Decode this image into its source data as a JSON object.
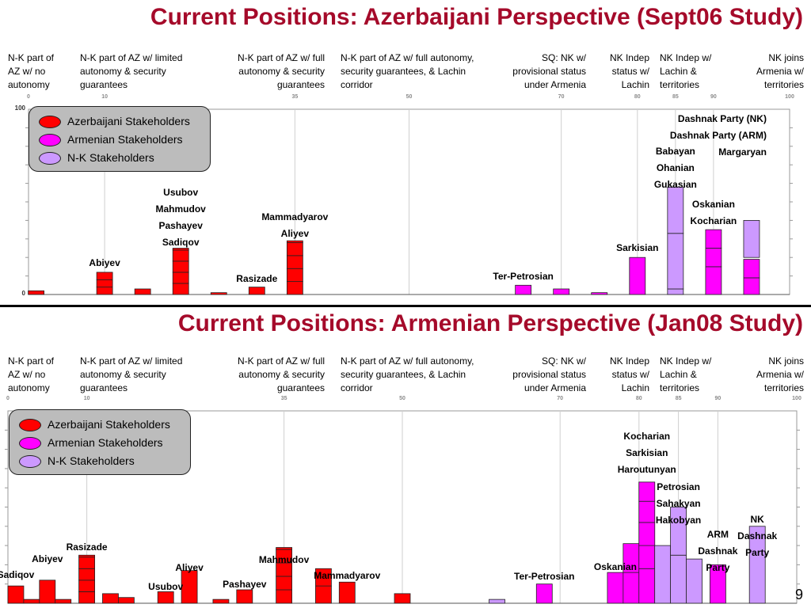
{
  "page_number": "9",
  "colors": {
    "title": "#a50a2a",
    "azerbaijani": "#ff0000",
    "armenian": "#ff00ff",
    "nk": "#cc99ff"
  },
  "position_headers": [
    "N-K part of AZ w/ no autonomy",
    "N-K part of AZ w/ limited autonomy & security guarantees",
    "N-K part of AZ w/ full autonomy & security guarantees",
    "N-K part of AZ w/ full autonomy, security guarantees, & Lachin corridor",
    "SQ: NK w/ provisional status under Armenia",
    "NK Indep status w/ Lachin",
    "NK Indep w/ Lachin & territories",
    "NK joins Armenia w/ territories"
  ],
  "legend": [
    "Azerbaijani Stakeholders",
    "Armenian Stakeholders",
    "N-K Stakeholders"
  ],
  "chart_data": [
    {
      "type": "bar",
      "title": "Current Positions: Azerbaijani Perspective (Sept06 Study)",
      "xlim": [
        0,
        100
      ],
      "ylim": [
        0,
        100
      ],
      "x_ticks": [
        "0",
        "10",
        "35",
        "50",
        "70",
        "80",
        "85",
        "90",
        "100"
      ],
      "x_tick_values": [
        0,
        10,
        35,
        50,
        70,
        80,
        85,
        90,
        100
      ],
      "y_ticks": [
        "100",
        "0"
      ],
      "y_tick_values": [
        100,
        0
      ],
      "bars": [
        {
          "x": 1,
          "group": "azerbaijani",
          "segments": [
            2
          ]
        },
        {
          "x": 10,
          "group": "azerbaijani",
          "segments": [
            4,
            4,
            4
          ]
        },
        {
          "x": 15,
          "group": "azerbaijani",
          "segments": [
            3
          ]
        },
        {
          "x": 20,
          "group": "azerbaijani",
          "segments": [
            6,
            6,
            6,
            6,
            1
          ]
        },
        {
          "x": 25,
          "group": "azerbaijani",
          "segments": [
            1
          ]
        },
        {
          "x": 30,
          "group": "azerbaijani",
          "segments": [
            4
          ]
        },
        {
          "x": 35,
          "group": "azerbaijani",
          "segments": [
            7,
            7,
            7,
            7,
            1
          ]
        },
        {
          "x": 65,
          "group": "armenian",
          "segments": [
            5
          ]
        },
        {
          "x": 70,
          "group": "armenian",
          "segments": [
            3
          ]
        },
        {
          "x": 75,
          "group": "armenian",
          "segments": [
            1
          ]
        },
        {
          "x": 80,
          "group": "armenian",
          "segments": [
            20
          ]
        },
        {
          "x": 85,
          "group": "nk",
          "segments": [
            3
          ]
        },
        {
          "x": 85,
          "group": "nk",
          "segments": [
            30,
            25
          ],
          "stack_base": 3
        },
        {
          "x": 90,
          "group": "armenian",
          "segments": [
            15,
            10,
            10
          ]
        },
        {
          "x": 95,
          "group": "armenian",
          "segments": [
            9,
            10
          ]
        },
        {
          "x": 95,
          "group": "nk",
          "segments": [
            20
          ],
          "stack_base": 20
        }
      ],
      "labels": [
        {
          "x": 10,
          "lines": [
            "Abiyev"
          ]
        },
        {
          "x": 20,
          "lines": [
            "Usubov",
            "Mahmudov",
            "Pashayev",
            "Sadiqov"
          ]
        },
        {
          "x": 30,
          "lines": [
            "Rasizade"
          ]
        },
        {
          "x": 35,
          "lines": [
            "Mammadyarov",
            "Aliyev"
          ]
        },
        {
          "x": 65,
          "lines": [
            "Ter-Petrosian"
          ]
        },
        {
          "x": 80,
          "lines": [
            "Sarkisian"
          ]
        },
        {
          "x": 85,
          "lines": [
            "Babayan",
            "Ohanian",
            "Gukasian"
          ]
        },
        {
          "x": 90,
          "lines": [
            "Oskanian",
            "Kocharian"
          ]
        },
        {
          "x": 95,
          "lines": [
            "Dashnak Party (NK)",
            "Dashnak Party (ARM)",
            "Margaryan"
          ]
        }
      ]
    },
    {
      "type": "bar",
      "title": "Current Positions: Armenian Perspective (Jan08 Study)",
      "xlim": [
        0,
        100
      ],
      "ylim": [
        0,
        100
      ],
      "x_ticks": [
        "0",
        "10",
        "35",
        "50",
        "70",
        "80",
        "85",
        "90",
        "100"
      ],
      "x_tick_values": [
        0,
        10,
        35,
        50,
        70,
        80,
        85,
        90,
        100
      ],
      "bars": [
        {
          "x": 1,
          "group": "azerbaijani",
          "segments": [
            9
          ]
        },
        {
          "x": 3,
          "group": "azerbaijani",
          "segments": [
            2
          ]
        },
        {
          "x": 5,
          "group": "azerbaijani",
          "segments": [
            12
          ]
        },
        {
          "x": 7,
          "group": "azerbaijani",
          "segments": [
            2
          ]
        },
        {
          "x": 10,
          "group": "azerbaijani",
          "segments": [
            6,
            6,
            6,
            6,
            1
          ]
        },
        {
          "x": 13,
          "group": "azerbaijani",
          "segments": [
            5
          ]
        },
        {
          "x": 15,
          "group": "azerbaijani",
          "segments": [
            3
          ]
        },
        {
          "x": 20,
          "group": "azerbaijani",
          "segments": [
            6
          ]
        },
        {
          "x": 23,
          "group": "azerbaijani",
          "segments": [
            17
          ]
        },
        {
          "x": 27,
          "group": "azerbaijani",
          "segments": [
            2
          ]
        },
        {
          "x": 30,
          "group": "azerbaijani",
          "segments": [
            7
          ]
        },
        {
          "x": 35,
          "group": "azerbaijani",
          "segments": [
            7,
            7,
            7,
            7,
            1
          ]
        },
        {
          "x": 40,
          "group": "azerbaijani",
          "segments": [
            9,
            9
          ]
        },
        {
          "x": 43,
          "group": "azerbaijani",
          "segments": [
            11
          ]
        },
        {
          "x": 50,
          "group": "azerbaijani",
          "segments": [
            5
          ]
        },
        {
          "x": 62,
          "group": "nk",
          "segments": [
            2
          ]
        },
        {
          "x": 68,
          "group": "armenian",
          "segments": [
            10
          ]
        },
        {
          "x": 77,
          "group": "armenian",
          "segments": [
            16
          ]
        },
        {
          "x": 79,
          "group": "armenian",
          "segments": [
            16,
            15
          ]
        },
        {
          "x": 81,
          "group": "armenian",
          "segments": [
            18,
            12,
            12,
            11,
            10
          ]
        },
        {
          "x": 83,
          "group": "nk",
          "segments": [
            30
          ]
        },
        {
          "x": 85,
          "group": "nk",
          "segments": [
            25,
            25
          ]
        },
        {
          "x": 87,
          "group": "nk",
          "segments": [
            23
          ]
        },
        {
          "x": 90,
          "group": "armenian",
          "segments": [
            20
          ]
        },
        {
          "x": 95,
          "group": "nk",
          "segments": [
            40
          ]
        }
      ],
      "labels": [
        {
          "x": 1,
          "lines": [
            "Sadiqov"
          ]
        },
        {
          "x": 5,
          "lines": [
            "Abiyev"
          ]
        },
        {
          "x": 10,
          "lines": [
            "Rasizade"
          ]
        },
        {
          "x": 20,
          "lines": [
            "Usubov"
          ]
        },
        {
          "x": 23,
          "lines": [
            "Aliyev"
          ]
        },
        {
          "x": 30,
          "lines": [
            "Pashayev"
          ]
        },
        {
          "x": 35,
          "lines": [
            "Mahmudov"
          ]
        },
        {
          "x": 43,
          "lines": [
            "Mammadyarov"
          ]
        },
        {
          "x": 68,
          "lines": [
            "Ter-Petrosian"
          ]
        },
        {
          "x": 77,
          "lines": [
            "Oskanian"
          ]
        },
        {
          "x": 81,
          "lines": [
            "Kocharian",
            "Sarkisian",
            "Haroutunyan"
          ]
        },
        {
          "x": 85,
          "lines": [
            "Petrosian",
            "Sahakyan",
            "Hakobyan"
          ]
        },
        {
          "x": 90,
          "lines": [
            "ARM",
            "Dashnak",
            "Party"
          ]
        },
        {
          "x": 95,
          "lines": [
            "NK",
            "Dashnak",
            "Party"
          ]
        }
      ]
    }
  ]
}
